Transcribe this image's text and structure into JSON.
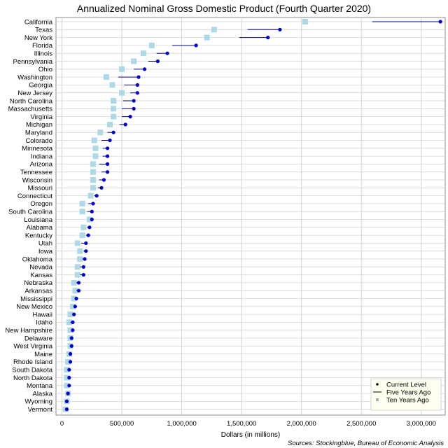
{
  "chart_data": {
    "type": "scatter",
    "title": "Annualized Nominal Gross Domestic Product (Fourth Quarter 2020)",
    "xlabel": "Dollars (in millions)",
    "ylabel": "",
    "source": "Sources: Stockingblue, Bureau of Economic Analysis",
    "xlim": [
      -50000,
      3200000
    ],
    "x_ticks": [
      0,
      500000,
      1000000,
      1500000,
      2000000,
      2500000,
      3000000
    ],
    "x_tick_labels": [
      "0",
      "500,000",
      "1,000,000",
      "1,500,000",
      "2,000,000",
      "2,500,000",
      "3,000,000"
    ],
    "grid": true,
    "legend": {
      "position": "bottom-right",
      "entries": [
        "Current Level",
        "Five Years Ago",
        "Ten Years Ago"
      ]
    },
    "colors": {
      "current": "#0000cc",
      "five_years": "#00008b",
      "ten_years": "#add8e6",
      "grid": "#d3d3d3"
    },
    "categories": [
      "California",
      "Texas",
      "New York",
      "Florida",
      "Illinois",
      "Pennsylvania",
      "Ohio",
      "Washington",
      "Georgia",
      "New Jersey",
      "North Carolina",
      "Massachusetts",
      "Virginia",
      "Michigan",
      "Maryland",
      "Colorado",
      "Minnesota",
      "Indiana",
      "Arizona",
      "Tennessee",
      "Wisconsin",
      "Missouri",
      "Connecticut",
      "Oregon",
      "South Carolina",
      "Louisiana",
      "Alabama",
      "Kentucky",
      "Utah",
      "Iowa",
      "Oklahoma",
      "Nevada",
      "Kansas",
      "Nebraska",
      "Arkansas",
      "Mississippi",
      "New Mexico",
      "Hawaii",
      "Idaho",
      "New Hampshire",
      "Delaware",
      "West Virginia",
      "Maine",
      "Rhode Island",
      "South Dakota",
      "North Dakota",
      "Montana",
      "Alaska",
      "Wyoming",
      "Vermont"
    ],
    "series": [
      {
        "name": "Current Level",
        "values": [
          3160000,
          1820000,
          1720000,
          1120000,
          880000,
          800000,
          690000,
          640000,
          630000,
          630000,
          600000,
          600000,
          570000,
          530000,
          430000,
          400000,
          380000,
          380000,
          380000,
          380000,
          350000,
          330000,
          290000,
          260000,
          250000,
          250000,
          230000,
          220000,
          200000,
          200000,
          190000,
          180000,
          180000,
          140000,
          140000,
          120000,
          110000,
          100000,
          90000,
          90000,
          80000,
          80000,
          70000,
          70000,
          60000,
          60000,
          60000,
          50000,
          40000,
          40000
        ]
      },
      {
        "name": "Five Years Ago",
        "values": [
          2590000,
          1550000,
          1480000,
          920000,
          790000,
          720000,
          600000,
          470000,
          520000,
          570000,
          510000,
          500000,
          500000,
          480000,
          380000,
          330000,
          340000,
          340000,
          310000,
          330000,
          310000,
          300000,
          270000,
          220000,
          210000,
          240000,
          210000,
          200000,
          160000,
          180000,
          170000,
          150000,
          150000,
          120000,
          120000,
          110000,
          100000,
          90000,
          70000,
          80000,
          70000,
          70000,
          60000,
          60000,
          50000,
          60000,
          50000,
          50000,
          40000,
          30000
        ]
      },
      {
        "name": "Ten Years Ago",
        "values": [
          2030000,
          1270000,
          1210000,
          750000,
          680000,
          600000,
          500000,
          370000,
          420000,
          500000,
          430000,
          430000,
          430000,
          400000,
          320000,
          270000,
          280000,
          280000,
          260000,
          260000,
          260000,
          260000,
          240000,
          170000,
          170000,
          230000,
          180000,
          170000,
          130000,
          150000,
          150000,
          130000,
          130000,
          100000,
          110000,
          100000,
          90000,
          70000,
          60000,
          70000,
          70000,
          70000,
          60000,
          50000,
          40000,
          40000,
          40000,
          50000,
          40000,
          30000
        ]
      }
    ]
  }
}
